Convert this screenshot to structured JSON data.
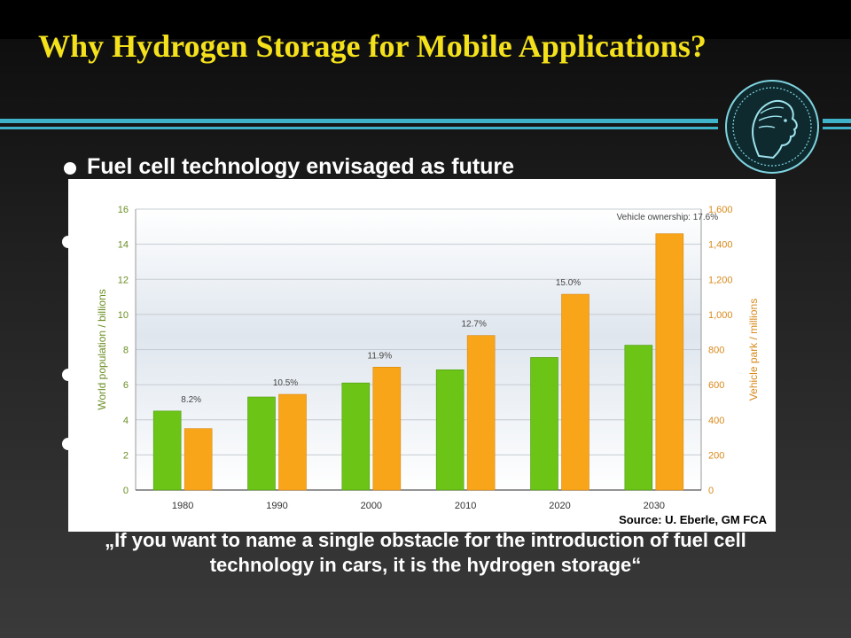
{
  "slide": {
    "title": "Why Hydrogen Storage for Mobile Applications?",
    "bullet_visible_text": "Fuel cell technology envisaged as future",
    "source": "Source: U. Eberle, GM FCA",
    "quote": "„If you want to name a single obstacle for the introduction of fuel cell technology in cars, it is the hydrogen storage“"
  },
  "colors": {
    "title": "#f4e11c",
    "accent_rule": "#3fb3c9",
    "population_bar": "#6cc417",
    "vehicle_bar": "#f9a51a"
  },
  "chart_data": {
    "type": "bar",
    "categories": [
      "1980",
      "1990",
      "2000",
      "2010",
      "2020",
      "2030"
    ],
    "series": [
      {
        "axis": "left",
        "values": [
          4.5,
          5.3,
          6.1,
          6.85,
          7.55,
          8.25
        ]
      },
      {
        "axis": "right",
        "values": [
          350,
          545,
          700,
          880,
          1115,
          1460
        ]
      }
    ],
    "ownership_labels": [
      "8.2%",
      "10.5%",
      "11.9%",
      "12.7%",
      "15.0%",
      "Vehicle ownership: 17.6%"
    ],
    "ylabel_left": "World population / billions",
    "ylabel_right": "Vehicle park / millions",
    "ylim_left": [
      0,
      16
    ],
    "ylim_right": [
      0,
      1600
    ],
    "yticks_left": [
      "0",
      "2",
      "4",
      "6",
      "8",
      "10",
      "12",
      "14",
      "16"
    ],
    "yticks_right": [
      "0",
      "200",
      "400",
      "600",
      "800",
      "1,000",
      "1,200",
      "1,400",
      "1,600"
    ],
    "grid": true
  }
}
